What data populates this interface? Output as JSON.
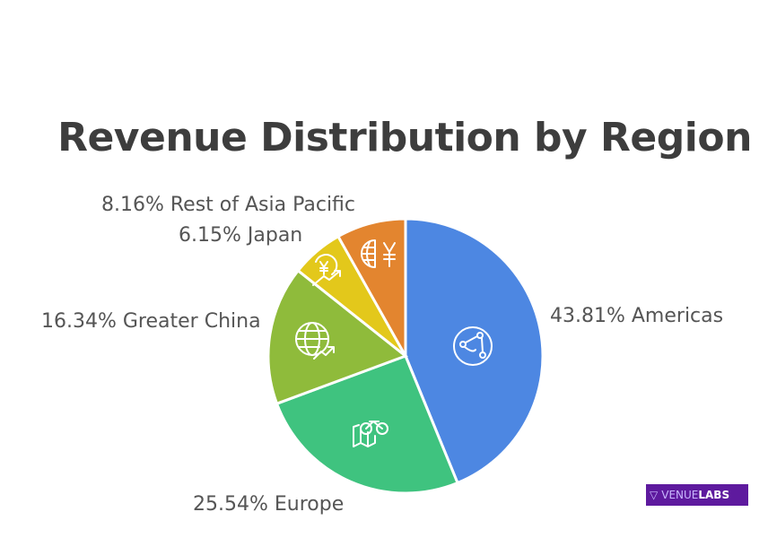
{
  "chart_data": {
    "type": "pie",
    "title": "Revenue Distribution by Region",
    "categories": [
      "Americas",
      "Europe",
      "Greater China",
      "Japan",
      "Rest of Asia Pacific"
    ],
    "values": [
      43.81,
      25.54,
      16.34,
      6.15,
      8.16
    ],
    "labels": [
      "43.81% Americas",
      "25.54% Europe",
      "16.34% Greater China",
      "6.15% Japan",
      "8.16% Rest of Asia Pacific"
    ],
    "colors": [
      "#4d87e2",
      "#3fc37f",
      "#8fbb3b",
      "#e3c81b",
      "#e3852f"
    ],
    "icons": [
      "globe-network-icon",
      "map-bicycle-icon",
      "globe-growth-icon",
      "yen-growth-icon",
      "globe-yen-icon"
    ],
    "start_angle": "12 o'clock, clockwise"
  },
  "branding": {
    "logo_text_a": "VENUE",
    "logo_text_b": "LABS"
  }
}
